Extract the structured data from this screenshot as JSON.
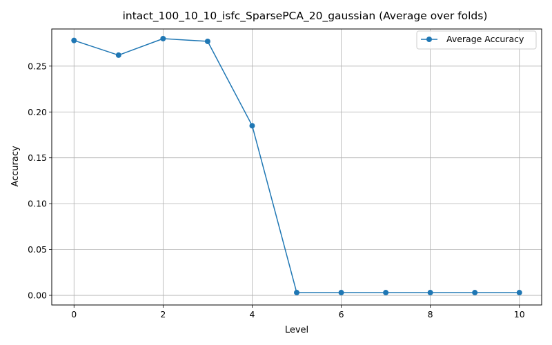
{
  "chart_data": {
    "type": "line",
    "title": "intact_100_10_10_isfc_SparsePCA_20_gaussian (Average over folds)",
    "xlabel": "Level",
    "ylabel": "Accuracy",
    "x": [
      0,
      1,
      2,
      3,
      4,
      5,
      6,
      7,
      8,
      9,
      10
    ],
    "series": [
      {
        "name": "Average Accuracy",
        "color": "#1f77b4",
        "marker": "circle",
        "values": [
          0.278,
          0.262,
          0.28,
          0.277,
          0.185,
          0.003,
          0.003,
          0.003,
          0.003,
          0.003,
          0.003
        ]
      }
    ],
    "xlim": [
      -0.5,
      10.5
    ],
    "ylim": [
      -0.0105,
      0.2905
    ],
    "xticks": [
      0,
      2,
      4,
      6,
      8,
      10
    ],
    "xtick_labels": [
      "0",
      "2",
      "4",
      "6",
      "8",
      "10"
    ],
    "yticks": [
      0.0,
      0.05,
      0.1,
      0.15,
      0.2,
      0.25
    ],
    "ytick_labels": [
      "0.00",
      "0.05",
      "0.10",
      "0.15",
      "0.20",
      "0.25"
    ],
    "grid": true,
    "legend_position": "top-right"
  }
}
